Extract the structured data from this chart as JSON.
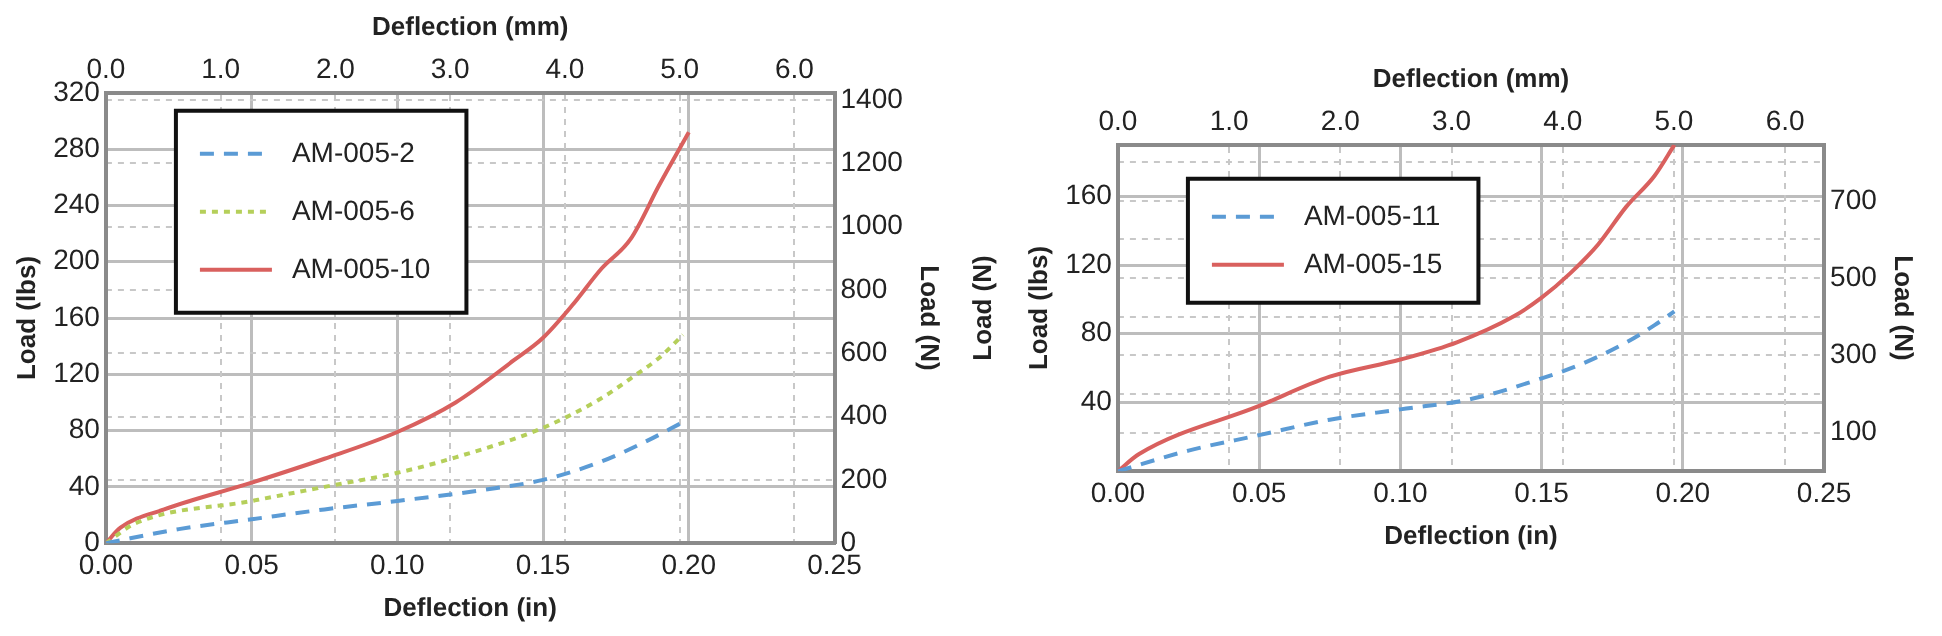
{
  "chart_data": [
    {
      "type": "line",
      "xlabel": "Deflection (in)",
      "x2label": "Deflection (mm)",
      "ylabel": "Load (lbs)",
      "y2label": "Load (N)",
      "xlim": [
        0,
        0.25
      ],
      "xticks": [
        {
          "value": 0,
          "label": "0.00"
        },
        {
          "value": 0.05,
          "label": "0.05"
        },
        {
          "value": 0.1,
          "label": "0.10"
        },
        {
          "value": 0.15,
          "label": "0.15"
        },
        {
          "value": 0.2,
          "label": "0.20"
        },
        {
          "value": 0.25,
          "label": "0.25"
        }
      ],
      "x2lim": [
        0,
        6.35
      ],
      "x2ticks": [
        {
          "value": 0,
          "label": "0.0"
        },
        {
          "value": 1,
          "label": "1.0"
        },
        {
          "value": 2,
          "label": "2.0"
        },
        {
          "value": 3,
          "label": "3.0"
        },
        {
          "value": 4,
          "label": "4.0"
        },
        {
          "value": 5,
          "label": "5.0"
        },
        {
          "value": 6,
          "label": "6.0"
        }
      ],
      "ylim": [
        0,
        320
      ],
      "yticks": [
        0,
        40,
        80,
        120,
        160,
        200,
        240,
        280,
        320
      ],
      "y2lim": [
        0,
        1423.4
      ],
      "y2ticks": [
        0,
        200,
        400,
        600,
        800,
        1000,
        1200,
        1400
      ],
      "grid": true,
      "legend": "top left",
      "marker": "none",
      "series": [
        {
          "name": "AM-005-2",
          "color": "#5b9bd5",
          "line_style": "dashed",
          "x": [
            0,
            0.025,
            0.05,
            0.075,
            0.1,
            0.13,
            0.15,
            0.17,
            0.185,
            0.198
          ],
          "values": [
            0,
            10,
            17,
            24,
            30,
            38,
            45,
            58,
            72,
            86
          ]
        },
        {
          "name": "AM-005-6",
          "color": "#b5cf5a",
          "line_style": "dotted",
          "x": [
            0,
            0.01,
            0.05,
            0.075,
            0.1,
            0.12,
            0.15,
            0.17,
            0.18,
            0.19,
            0.198
          ],
          "values": [
            0,
            14,
            30,
            40,
            50,
            61,
            82,
            103,
            117,
            132,
            148
          ]
        },
        {
          "name": "AM-005-10",
          "color": "#d9605e",
          "line_style": "solid",
          "x": [
            0,
            0.005,
            0.02,
            0.05,
            0.075,
            0.1,
            0.12,
            0.14,
            0.15,
            0.16,
            0.17,
            0.18,
            0.19,
            0.2
          ],
          "values": [
            0,
            11,
            24,
            43,
            60,
            79,
            100,
            130,
            146,
            169,
            195,
            216,
            255,
            292
          ]
        }
      ]
    },
    {
      "type": "line",
      "xlabel": "Deflection (in)",
      "x2label": "Deflection (mm)",
      "ylabel": "Load (lbs)",
      "y2label": "Load (N)",
      "annotations": [
        "Load (N)"
      ],
      "xlim": [
        0,
        0.25
      ],
      "xticks": [
        {
          "value": 0,
          "label": "0.00"
        },
        {
          "value": 0.05,
          "label": "0.05"
        },
        {
          "value": 0.1,
          "label": "0.10"
        },
        {
          "value": 0.15,
          "label": "0.15"
        },
        {
          "value": 0.2,
          "label": "0.20"
        },
        {
          "value": 0.25,
          "label": "0.25"
        }
      ],
      "x2lim": [
        0,
        6.35
      ],
      "x2ticks": [
        {
          "value": 0,
          "label": "0.0"
        },
        {
          "value": 1,
          "label": "1.0"
        },
        {
          "value": 2,
          "label": "2.0"
        },
        {
          "value": 3,
          "label": "3.0"
        },
        {
          "value": 4,
          "label": "4.0"
        },
        {
          "value": 5,
          "label": "5.0"
        },
        {
          "value": 6,
          "label": "6.0"
        }
      ],
      "ylim": [
        0,
        190
      ],
      "yticks": [
        40,
        80,
        120,
        160
      ],
      "y2lim": [
        0,
        845.2
      ],
      "y2ticks": [
        100,
        {
          "value": 200,
          "label": null
        },
        300,
        {
          "value": 400,
          "label": null
        },
        500,
        {
          "value": 600,
          "label": null
        },
        700,
        {
          "value": 800,
          "label": null
        }
      ],
      "grid": true,
      "legend": "top left",
      "marker": "none",
      "series": [
        {
          "name": "AM-005-11",
          "color": "#5b9bd5",
          "line_style": "dashed",
          "x": [
            0,
            0.025,
            0.05,
            0.075,
            0.1,
            0.125,
            0.15,
            0.165,
            0.18,
            0.19,
            0.197
          ],
          "values": [
            0,
            12,
            21,
            30,
            36,
            42,
            54,
            63,
            75,
            85,
            93
          ]
        },
        {
          "name": "AM-005-15",
          "color": "#d9605e",
          "line_style": "solid",
          "x": [
            0,
            0.0075,
            0.05,
            0.075,
            0.1,
            0.12,
            0.14,
            0.15,
            0.16,
            0.17,
            0.18,
            0.19,
            0.197
          ],
          "values": [
            0,
            10,
            38,
            55,
            65,
            75,
            90,
            101,
            115,
            132,
            154,
            172,
            190
          ]
        }
      ]
    }
  ]
}
